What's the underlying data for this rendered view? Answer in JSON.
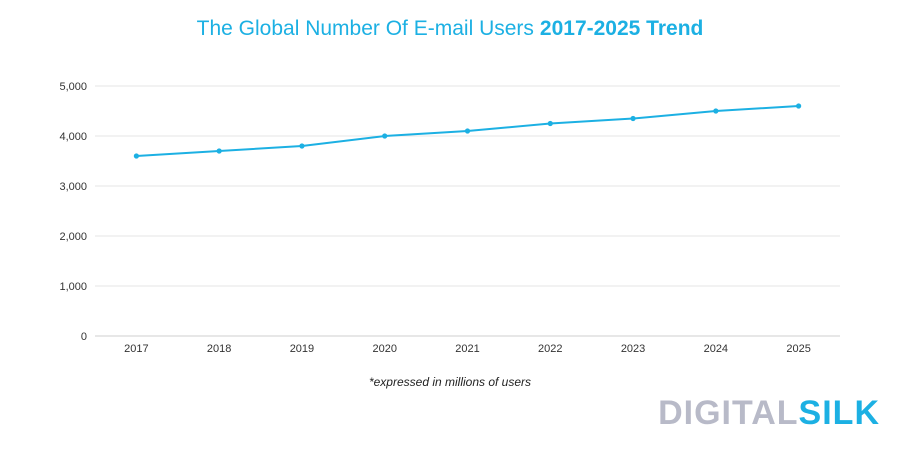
{
  "title": {
    "main": "The Global Number Of E-mail Users",
    "highlight": "2017-2025 Trend",
    "color": "#1cb0e3"
  },
  "note": "*expressed in millions of users",
  "logo": {
    "part1": "DIGITAL",
    "part2": "SILK",
    "color1": "#b8bac8",
    "color2": "#1cb0e3"
  },
  "chart_data": {
    "type": "line",
    "title": "The Global Number Of E-mail Users 2017-2025 Trend",
    "xlabel": "",
    "ylabel": "",
    "categories": [
      "2017",
      "2018",
      "2019",
      "2020",
      "2021",
      "2022",
      "2023",
      "2024",
      "2025"
    ],
    "series": [
      {
        "values": [
          3600,
          3700,
          3800,
          4000,
          4100,
          4250,
          4350,
          4500,
          4600
        ],
        "color": "#1cb0e3"
      }
    ],
    "ylim": [
      0,
      5000
    ],
    "yticks": [
      0,
      1000,
      2000,
      3000,
      4000,
      5000
    ],
    "ytick_labels": [
      "0",
      "1,000",
      "2,000",
      "3,000",
      "4,000",
      "5,000"
    ],
    "grid": true,
    "legend": "none"
  }
}
